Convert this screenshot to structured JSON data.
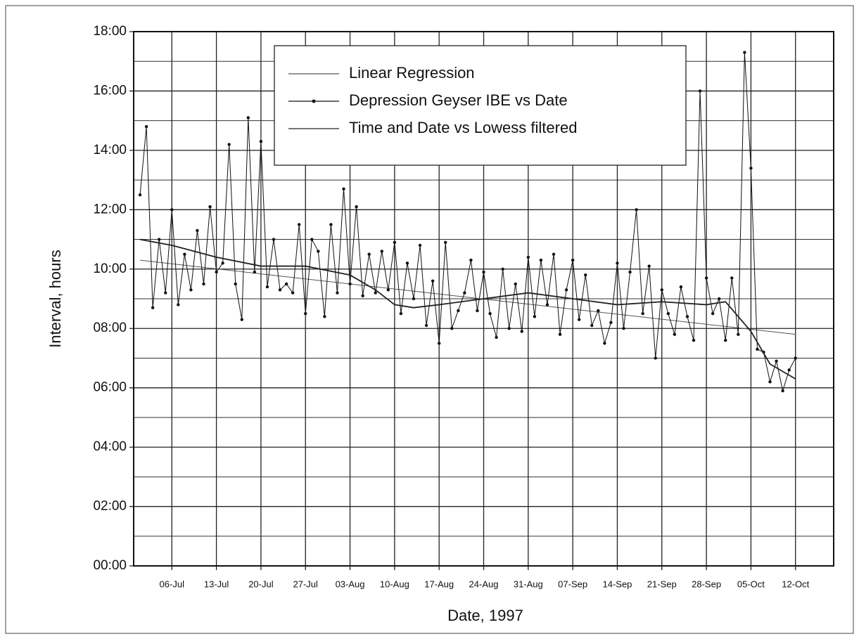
{
  "chart_data": {
    "type": "line",
    "x_label": "Date, 1997",
    "y_label": "Interval, hours",
    "xlim": [
      "1997-06-30",
      "1997-10-18"
    ],
    "xticks": [
      {
        "value": "1997-07-06",
        "label": "06-Jul"
      },
      {
        "value": "1997-07-13",
        "label": "13-Jul"
      },
      {
        "value": "1997-07-20",
        "label": "20-Jul"
      },
      {
        "value": "1997-07-27",
        "label": "27-Jul"
      },
      {
        "value": "1997-08-03",
        "label": "03-Aug"
      },
      {
        "value": "1997-08-10",
        "label": "10-Aug"
      },
      {
        "value": "1997-08-17",
        "label": "17-Aug"
      },
      {
        "value": "1997-08-24",
        "label": "24-Aug"
      },
      {
        "value": "1997-08-31",
        "label": "31-Aug"
      },
      {
        "value": "1997-09-07",
        "label": "07-Sep"
      },
      {
        "value": "1997-09-14",
        "label": "14-Sep"
      },
      {
        "value": "1997-09-21",
        "label": "21-Sep"
      },
      {
        "value": "1997-09-28",
        "label": "28-Sep"
      },
      {
        "value": "1997-10-05",
        "label": "05-Oct"
      },
      {
        "value": "1997-10-12",
        "label": "12-Oct"
      }
    ],
    "ylim": [
      0,
      18
    ],
    "yticks": [
      {
        "value": 0,
        "label": "00:00"
      },
      {
        "value": 2,
        "label": "02:00"
      },
      {
        "value": 4,
        "label": "04:00"
      },
      {
        "value": 6,
        "label": "06:00"
      },
      {
        "value": 8,
        "label": "08:00"
      },
      {
        "value": 10,
        "label": "10:00"
      },
      {
        "value": 12,
        "label": "12:00"
      },
      {
        "value": 14,
        "label": "14:00"
      },
      {
        "value": 16,
        "label": "16:00"
      },
      {
        "value": 18,
        "label": "18:00"
      }
    ],
    "y_minor_grid": [
      1,
      3,
      5,
      7,
      9,
      11,
      13,
      15,
      17
    ],
    "grid": true,
    "legend": "top",
    "series": [
      {
        "name": "Linear Regression",
        "color": "#555555",
        "x": [
          "1997-07-01",
          "1997-10-12"
        ],
        "values": [
          10.3,
          7.8
        ]
      },
      {
        "name": "Depression Geyser IBE vs Date",
        "color": "#111111",
        "markers": true,
        "x": [
          "1997-07-01",
          "1997-07-02",
          "1997-07-03",
          "1997-07-04",
          "1997-07-05",
          "1997-07-06",
          "1997-07-07",
          "1997-07-08",
          "1997-07-09",
          "1997-07-10",
          "1997-07-11",
          "1997-07-12",
          "1997-07-13",
          "1997-07-14",
          "1997-07-15",
          "1997-07-16",
          "1997-07-17",
          "1997-07-18",
          "1997-07-19",
          "1997-07-20",
          "1997-07-21",
          "1997-07-22",
          "1997-07-23",
          "1997-07-24",
          "1997-07-25",
          "1997-07-26",
          "1997-07-27",
          "1997-07-28",
          "1997-07-29",
          "1997-07-30",
          "1997-07-31",
          "1997-08-01",
          "1997-08-02",
          "1997-08-03",
          "1997-08-04",
          "1997-08-05",
          "1997-08-06",
          "1997-08-07",
          "1997-08-08",
          "1997-08-09",
          "1997-08-10",
          "1997-08-11",
          "1997-08-12",
          "1997-08-13",
          "1997-08-14",
          "1997-08-15",
          "1997-08-16",
          "1997-08-17",
          "1997-08-18",
          "1997-08-19",
          "1997-08-20",
          "1997-08-21",
          "1997-08-22",
          "1997-08-23",
          "1997-08-24",
          "1997-08-25",
          "1997-08-26",
          "1997-08-27",
          "1997-08-28",
          "1997-08-29",
          "1997-08-30",
          "1997-08-31",
          "1997-09-01",
          "1997-09-02",
          "1997-09-03",
          "1997-09-04",
          "1997-09-05",
          "1997-09-06",
          "1997-09-07",
          "1997-09-08",
          "1997-09-09",
          "1997-09-10",
          "1997-09-11",
          "1997-09-12",
          "1997-09-13",
          "1997-09-14",
          "1997-09-15",
          "1997-09-16",
          "1997-09-17",
          "1997-09-18",
          "1997-09-19",
          "1997-09-20",
          "1997-09-21",
          "1997-09-22",
          "1997-09-23",
          "1997-09-24",
          "1997-09-25",
          "1997-09-26",
          "1997-09-27",
          "1997-09-28",
          "1997-09-29",
          "1997-09-30",
          "1997-10-01",
          "1997-10-02",
          "1997-10-03",
          "1997-10-04",
          "1997-10-05",
          "1997-10-06",
          "1997-10-07",
          "1997-10-08",
          "1997-10-09",
          "1997-10-10",
          "1997-10-11",
          "1997-10-12"
        ],
        "values": [
          12.5,
          14.8,
          8.7,
          11.0,
          9.2,
          12.0,
          8.8,
          10.5,
          9.3,
          11.3,
          9.5,
          12.1,
          9.9,
          10.2,
          14.2,
          9.5,
          8.3,
          15.1,
          9.9,
          14.3,
          9.4,
          11.0,
          9.3,
          9.5,
          9.2,
          11.5,
          8.5,
          11.0,
          10.6,
          8.4,
          11.5,
          9.2,
          12.7,
          9.5,
          12.1,
          9.1,
          10.5,
          9.2,
          10.6,
          9.3,
          10.9,
          8.5,
          10.2,
          9.0,
          10.8,
          8.1,
          9.6,
          7.5,
          10.9,
          8.0,
          8.6,
          9.2,
          10.3,
          8.6,
          9.9,
          8.5,
          7.7,
          10.0,
          8.0,
          9.5,
          7.9,
          10.4,
          8.4,
          10.3,
          8.8,
          10.5,
          7.8,
          9.3,
          10.3,
          8.3,
          9.8,
          8.1,
          8.6,
          7.5,
          8.2,
          10.2,
          8.0,
          9.9,
          12.0,
          8.5,
          10.1,
          7.0,
          9.3,
          8.5,
          7.8,
          9.4,
          8.4,
          7.6,
          16.0,
          9.7,
          8.5,
          9.0,
          7.6,
          9.7,
          7.8,
          17.3,
          13.4,
          7.3,
          7.2,
          6.2,
          6.9,
          5.9,
          6.6,
          7.0
        ]
      },
      {
        "name": "Time and Date vs Lowess filtered",
        "color": "#222222",
        "x": [
          "1997-07-01",
          "1997-07-06",
          "1997-07-13",
          "1997-07-20",
          "1997-07-27",
          "1997-08-03",
          "1997-08-07",
          "1997-08-10",
          "1997-08-13",
          "1997-08-17",
          "1997-08-24",
          "1997-08-31",
          "1997-09-07",
          "1997-09-14",
          "1997-09-21",
          "1997-09-28",
          "1997-10-01",
          "1997-10-03",
          "1997-10-05",
          "1997-10-08",
          "1997-10-12"
        ],
        "values": [
          11.0,
          10.8,
          10.4,
          10.1,
          10.1,
          9.8,
          9.3,
          8.8,
          8.7,
          8.8,
          9.0,
          9.2,
          9.0,
          8.8,
          8.9,
          8.8,
          8.9,
          8.4,
          7.9,
          6.8,
          6.3
        ]
      }
    ]
  }
}
